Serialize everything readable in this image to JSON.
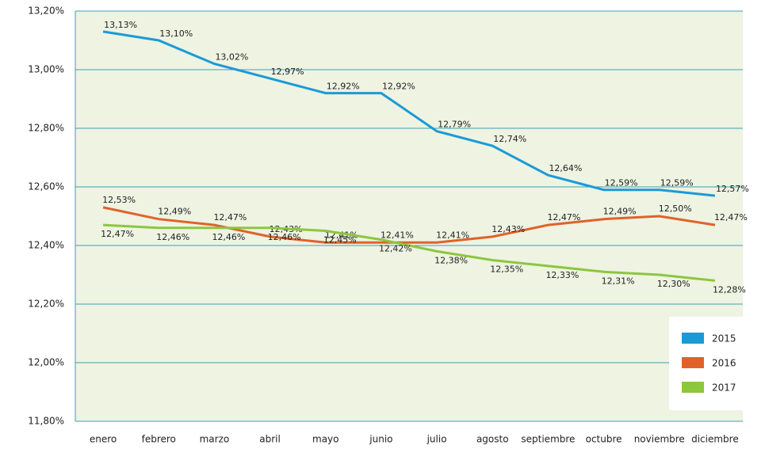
{
  "chart_data": {
    "type": "line",
    "categories": [
      "enero",
      "febrero",
      "marzo",
      "abril",
      "mayo",
      "junio",
      "julio",
      "agosto",
      "septiembre",
      "octubre",
      "noviembre",
      "diciembre"
    ],
    "series": [
      {
        "name": "2015",
        "color": "#1b9ad6",
        "values": [
          13.13,
          13.1,
          13.02,
          12.97,
          12.92,
          12.92,
          12.79,
          12.74,
          12.64,
          12.59,
          12.59,
          12.57
        ],
        "value_labels": [
          "13,13%",
          "13,10%",
          "13,02%",
          "12,97%",
          "12,92%",
          "12,92%",
          "12,79%",
          "12,74%",
          "12,64%",
          "12,59%",
          "12,59%",
          "12,57%"
        ]
      },
      {
        "name": "2016",
        "color": "#e0622a",
        "values": [
          12.53,
          12.49,
          12.47,
          12.43,
          12.41,
          12.41,
          12.41,
          12.43,
          12.47,
          12.49,
          12.5,
          12.47
        ],
        "value_labels": [
          "12,53%",
          "12,49%",
          "12,47%",
          "12,43%",
          "12,41%",
          "12,41%",
          "12,41%",
          "12,43%",
          "12,47%",
          "12,49%",
          "12,50%",
          "12,47%"
        ]
      },
      {
        "name": "2017",
        "color": "#8dc63f",
        "values": [
          12.47,
          12.46,
          12.46,
          12.46,
          12.45,
          12.42,
          12.38,
          12.35,
          12.33,
          12.31,
          12.3,
          12.28
        ],
        "value_labels": [
          "12,47%",
          "12,46%",
          "12,46%",
          "12,46%",
          "12,45%",
          "12,42%",
          "12,38%",
          "12,35%",
          "12,33%",
          "12,31%",
          "12,30%",
          "12,28%"
        ]
      }
    ],
    "ylim": [
      11.8,
      13.2
    ],
    "yticks": [
      {
        "value": 11.8,
        "label": "11,80%"
      },
      {
        "value": 12.0,
        "label": "12,00%"
      },
      {
        "value": 12.2,
        "label": "12,20%"
      },
      {
        "value": 12.4,
        "label": "12,40%"
      },
      {
        "value": 12.6,
        "label": "12,60%"
      },
      {
        "value": 12.8,
        "label": "12,80%"
      },
      {
        "value": 13.0,
        "label": "13,00%"
      },
      {
        "value": 13.2,
        "label": "13,20%"
      }
    ],
    "grid": true,
    "legend": "lower right"
  }
}
